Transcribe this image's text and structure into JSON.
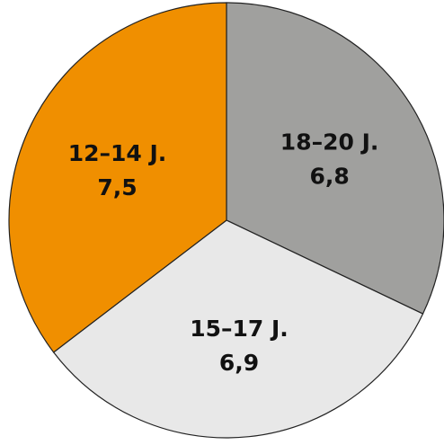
{
  "chart_data": {
    "type": "pie",
    "start_angle_deg": 0,
    "direction": "clockwise",
    "slices": [
      {
        "label": "18–20 J.",
        "value_text": "6,8",
        "value": 6.8,
        "color": "#a0a09e"
      },
      {
        "label": "15–17 J.",
        "value_text": "6,9",
        "value": 6.9,
        "color": "#e8e8e8"
      },
      {
        "label": "12–14 J.",
        "value_text": "7,5",
        "value": 7.5,
        "color": "#f08f00"
      }
    ]
  }
}
